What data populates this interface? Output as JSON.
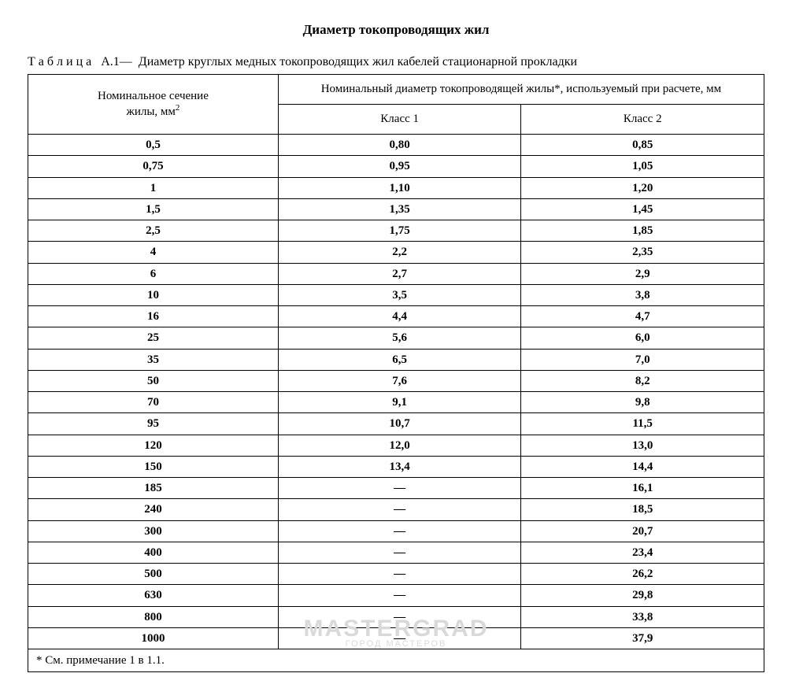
{
  "title": "Диаметр токопроводящих жил",
  "caption_prefix": "Т а б л и ц а",
  "caption_number": "А.1—",
  "caption_text": "Диаметр круглых медных токопроводящих жил кабелей стационарной прокладки",
  "header": {
    "col1_line1": "Номинальное сечение",
    "col1_line2": "жилы, мм",
    "col1_sup": "2",
    "span_label": "Номинальный диаметр токопроводящей жилы*, используемый при расчете, мм",
    "class1": "Класс 1",
    "class2": "Класс 2"
  },
  "footnote": "*  См. примечание 1 в 1.1.",
  "watermark": {
    "main": "MASTERGRAD",
    "sub": "ГОРОД МАСТЕРОВ"
  },
  "table": {
    "type": "table",
    "columns": [
      "Номинальное сечение жилы, мм²",
      "Класс 1",
      "Класс 2"
    ],
    "column_widths_pct": [
      34,
      33,
      33
    ],
    "border_color": "#000000",
    "background_color": "#ffffff",
    "text_color": "#000000",
    "header_fontweight": "normal",
    "body_fontweight": "bold",
    "fontsize_pt": 11,
    "rows": [
      [
        "0,5",
        "0,80",
        "0,85"
      ],
      [
        "0,75",
        "0,95",
        "1,05"
      ],
      [
        "1",
        "1,10",
        "1,20"
      ],
      [
        "1,5",
        "1,35",
        "1,45"
      ],
      [
        "2,5",
        "1,75",
        "1,85"
      ],
      [
        "4",
        "2,2",
        "2,35"
      ],
      [
        "6",
        "2,7",
        "2,9"
      ],
      [
        "10",
        "3,5",
        "3,8"
      ],
      [
        "16",
        "4,4",
        "4,7"
      ],
      [
        "25",
        "5,6",
        "6,0"
      ],
      [
        "35",
        "6,5",
        "7,0"
      ],
      [
        "50",
        "7,6",
        "8,2"
      ],
      [
        "70",
        "9,1",
        "9,8"
      ],
      [
        "95",
        "10,7",
        "11,5"
      ],
      [
        "120",
        "12,0",
        "13,0"
      ],
      [
        "150",
        "13,4",
        "14,4"
      ],
      [
        "185",
        "—",
        "16,1"
      ],
      [
        "240",
        "—",
        "18,5"
      ],
      [
        "300",
        "—",
        "20,7"
      ],
      [
        "400",
        "—",
        "23,4"
      ],
      [
        "500",
        "—",
        "26,2"
      ],
      [
        "630",
        "—",
        "29,8"
      ],
      [
        "800",
        "—",
        "33,8"
      ],
      [
        "1000",
        "—",
        "37,9"
      ]
    ]
  }
}
